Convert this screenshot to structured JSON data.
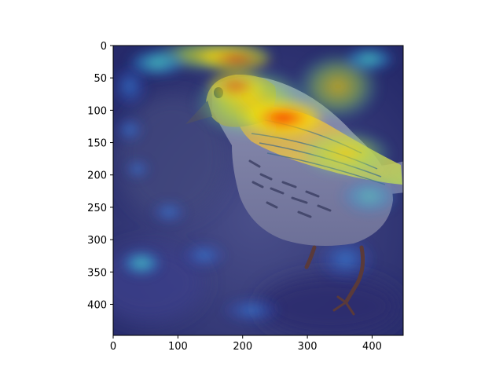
{
  "figure": {
    "x_range": [
      0,
      448
    ],
    "y_range": [
      0,
      448
    ],
    "y_inverted": true,
    "x_ticks": [
      0,
      100,
      200,
      300,
      400
    ],
    "y_ticks": [
      0,
      50,
      100,
      150,
      200,
      250,
      300,
      350,
      400
    ],
    "colormap": "jet",
    "subject": "bird",
    "overlay": "heatmap"
  }
}
